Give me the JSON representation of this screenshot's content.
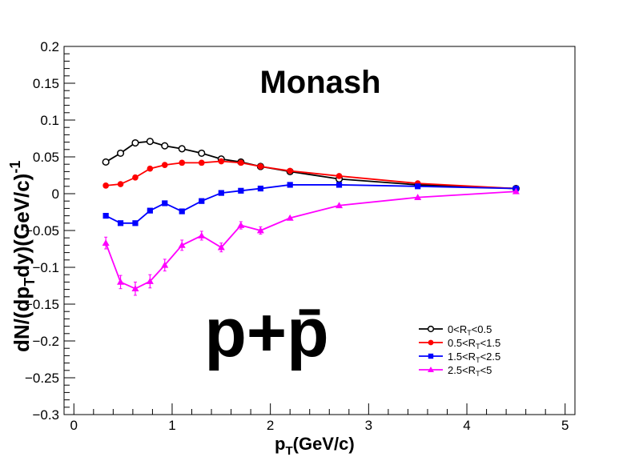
{
  "chart_data": {
    "type": "line",
    "title": "Monash",
    "label": "p+p̄",
    "xlabel": {
      "main": "p",
      "sub": "T",
      "rest": "(GeV/c)"
    },
    "ylabel": {
      "p1": "dN/(dp",
      "sub": "T",
      "p2": "dy)(GeV/c)",
      "sup": "-1"
    },
    "xlim": [
      -0.1,
      5.1
    ],
    "ylim": [
      -0.3,
      0.2
    ],
    "xticks": [
      0,
      1,
      2,
      3,
      4,
      5
    ],
    "xtick_labels": [
      "0",
      "1",
      "2",
      "3",
      "4",
      "5"
    ],
    "yticks": [
      -0.3,
      -0.25,
      -0.2,
      -0.15,
      -0.1,
      -0.05,
      0,
      0.05,
      0.1,
      0.15,
      0.2
    ],
    "ytick_labels": [
      "−0.3",
      "−0.25",
      "−0.2",
      "−0.15",
      "−0.1",
      "−0.05",
      "0",
      "0.05",
      "0.1",
      "0.15",
      "0.2"
    ],
    "grid": false,
    "legend_position": "bottom-right",
    "series": [
      {
        "legend": {
          "pre": "0<R",
          "sub": "T",
          "post": "<0.5"
        },
        "color": "#000000",
        "marker": "open-circle",
        "x": [
          0.325,
          0.475,
          0.625,
          0.775,
          0.925,
          1.1,
          1.3,
          1.5,
          1.7,
          1.9,
          2.2,
          2.7,
          3.5,
          4.5
        ],
        "y": [
          0.043,
          0.055,
          0.069,
          0.071,
          0.065,
          0.061,
          0.055,
          0.047,
          0.043,
          0.037,
          0.03,
          0.02,
          0.012,
          0.007
        ],
        "err": [
          0.002,
          0.002,
          0.002,
          0.002,
          0.002,
          0.002,
          0.002,
          0.002,
          0.002,
          0.002,
          0.001,
          0.001,
          0.001,
          0.001
        ]
      },
      {
        "legend": {
          "pre": "0.5<R",
          "sub": "T",
          "post": "<1.5"
        },
        "color": "#ff0000",
        "marker": "filled-circle",
        "x": [
          0.325,
          0.475,
          0.625,
          0.775,
          0.925,
          1.1,
          1.3,
          1.5,
          1.7,
          1.9,
          2.2,
          2.7,
          3.5,
          4.5
        ],
        "y": [
          0.011,
          0.013,
          0.022,
          0.034,
          0.039,
          0.042,
          0.042,
          0.044,
          0.042,
          0.037,
          0.031,
          0.024,
          0.014,
          0.007
        ],
        "err": [
          0.001,
          0.001,
          0.001,
          0.001,
          0.001,
          0.001,
          0.001,
          0.001,
          0.001,
          0.001,
          0.001,
          0.001,
          0.001,
          0.001
        ]
      },
      {
        "legend": {
          "pre": "1.5<R",
          "sub": "T",
          "post": "<2.5"
        },
        "color": "#0000ff",
        "marker": "filled-square",
        "x": [
          0.325,
          0.475,
          0.625,
          0.775,
          0.925,
          1.1,
          1.3,
          1.5,
          1.7,
          1.9,
          2.2,
          2.7,
          3.5,
          4.5
        ],
        "y": [
          -0.03,
          -0.04,
          -0.04,
          -0.023,
          -0.013,
          -0.024,
          -0.01,
          0.001,
          0.004,
          0.007,
          0.012,
          0.012,
          0.01,
          0.007
        ],
        "err": [
          0.002,
          0.002,
          0.002,
          0.002,
          0.002,
          0.002,
          0.002,
          0.002,
          0.001,
          0.001,
          0.001,
          0.001,
          0.001,
          0.001
        ]
      },
      {
        "legend": {
          "pre": "2.5<R",
          "sub": "T",
          "post": "<5"
        },
        "color": "#ff00ff",
        "marker": "filled-triangle",
        "x": [
          0.325,
          0.475,
          0.625,
          0.775,
          0.925,
          1.1,
          1.3,
          1.5,
          1.7,
          1.9,
          2.2,
          2.7,
          3.5,
          4.5
        ],
        "y": [
          -0.067,
          -0.12,
          -0.129,
          -0.119,
          -0.097,
          -0.07,
          -0.057,
          -0.073,
          -0.043,
          -0.05,
          -0.033,
          -0.016,
          -0.005,
          0.003
        ],
        "err": [
          0.008,
          0.009,
          0.009,
          0.009,
          0.008,
          0.007,
          0.006,
          0.006,
          0.005,
          0.005,
          0.003,
          0.002,
          0.001,
          0.001
        ]
      }
    ]
  }
}
